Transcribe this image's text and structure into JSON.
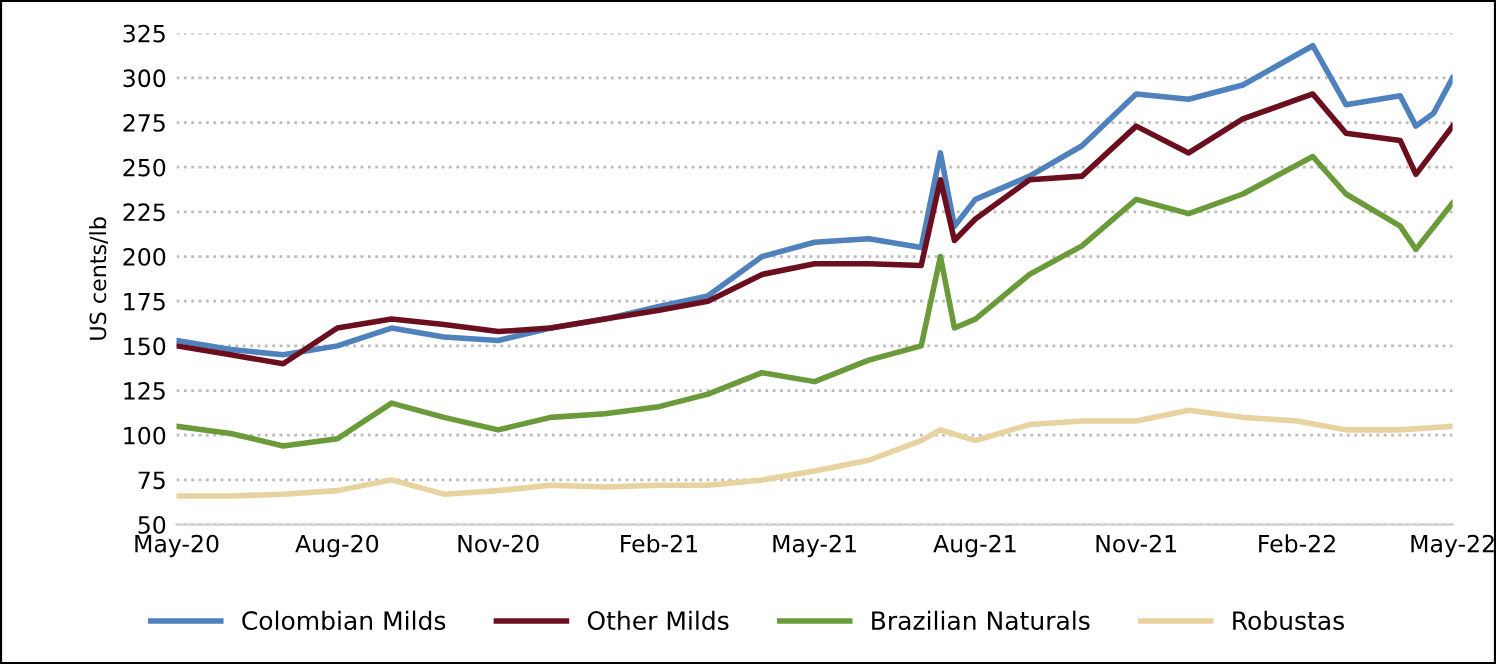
{
  "chart_data": {
    "type": "line",
    "ylabel": "US cents/lb",
    "ylim": [
      50,
      325
    ],
    "yticks": [
      50,
      75,
      100,
      125,
      150,
      175,
      200,
      225,
      250,
      275,
      300,
      325
    ],
    "xlim": [
      "2020-05-01",
      "2022-05-01"
    ],
    "xticks": [
      {
        "value": "2020-05-01",
        "label": "May-20"
      },
      {
        "value": "2020-08-01",
        "label": "Aug-20"
      },
      {
        "value": "2020-11-01",
        "label": "Nov-20"
      },
      {
        "value": "2021-02-01",
        "label": "Feb-21"
      },
      {
        "value": "2021-05-01",
        "label": "May-21"
      },
      {
        "value": "2021-08-01",
        "label": "Aug-21"
      },
      {
        "value": "2021-11-01",
        "label": "Nov-21"
      },
      {
        "value": "2022-02-01",
        "label": "Feb-22"
      },
      {
        "value": "2022-05-01",
        "label": "May-22"
      }
    ],
    "grid": "y",
    "legend": "bottom",
    "marker": "none",
    "line_style": "solid",
    "series": [
      {
        "name": "Colombian Milds",
        "color": "#4f81bd",
        "x": [
          "2020-05-01",
          "2020-06-01",
          "2020-07-01",
          "2020-08-01",
          "2020-09-01",
          "2020-10-01",
          "2020-11-01",
          "2020-12-01",
          "2021-01-01",
          "2021-02-01",
          "2021-03-01",
          "2021-04-01",
          "2021-05-01",
          "2021-06-01",
          "2021-07-01",
          "2021-07-12",
          "2021-07-20",
          "2021-08-01",
          "2021-09-01",
          "2021-10-01",
          "2021-11-01",
          "2021-12-01",
          "2022-01-01",
          "2022-02-10",
          "2022-03-01",
          "2022-04-01",
          "2022-04-10",
          "2022-04-20",
          "2022-05-01"
        ],
        "values": [
          153,
          148,
          145,
          150,
          160,
          155,
          153,
          160,
          165,
          172,
          178,
          200,
          208,
          210,
          205,
          258,
          217,
          232,
          245,
          262,
          291,
          288,
          296,
          318,
          285,
          290,
          273,
          280,
          300
        ]
      },
      {
        "name": "Other Milds",
        "color": "#6b0f1f",
        "x": [
          "2020-05-01",
          "2020-06-01",
          "2020-07-01",
          "2020-08-01",
          "2020-09-01",
          "2020-10-01",
          "2020-11-01",
          "2020-12-01",
          "2021-01-01",
          "2021-02-01",
          "2021-03-01",
          "2021-04-01",
          "2021-05-01",
          "2021-06-01",
          "2021-07-01",
          "2021-07-12",
          "2021-07-20",
          "2021-08-01",
          "2021-09-01",
          "2021-10-01",
          "2021-11-01",
          "2021-12-01",
          "2022-01-01",
          "2022-02-10",
          "2022-03-01",
          "2022-04-01",
          "2022-04-10",
          "2022-05-01"
        ],
        "values": [
          150,
          145,
          140,
          160,
          165,
          162,
          158,
          160,
          165,
          170,
          175,
          190,
          196,
          196,
          195,
          243,
          209,
          221,
          243,
          245,
          273,
          258,
          277,
          291,
          269,
          265,
          246,
          273
        ]
      },
      {
        "name": "Brazilian Naturals",
        "color": "#6a9a3a",
        "x": [
          "2020-05-01",
          "2020-06-01",
          "2020-07-01",
          "2020-08-01",
          "2020-09-01",
          "2020-10-01",
          "2020-11-01",
          "2020-12-01",
          "2021-01-01",
          "2021-02-01",
          "2021-03-01",
          "2021-04-01",
          "2021-05-01",
          "2021-06-01",
          "2021-07-01",
          "2021-07-12",
          "2021-07-20",
          "2021-08-01",
          "2021-09-01",
          "2021-10-01",
          "2021-11-01",
          "2021-12-01",
          "2022-01-01",
          "2022-02-10",
          "2022-03-01",
          "2022-04-01",
          "2022-04-10",
          "2022-05-01"
        ],
        "values": [
          105,
          101,
          94,
          98,
          118,
          110,
          103,
          110,
          112,
          116,
          123,
          135,
          130,
          142,
          150,
          200,
          160,
          165,
          190,
          206,
          232,
          224,
          235,
          256,
          235,
          217,
          204,
          230
        ]
      },
      {
        "name": "Robustas",
        "color": "#e8d3a0",
        "x": [
          "2020-05-01",
          "2020-06-01",
          "2020-07-01",
          "2020-08-01",
          "2020-09-01",
          "2020-10-01",
          "2020-11-01",
          "2020-12-01",
          "2021-01-01",
          "2021-02-01",
          "2021-03-01",
          "2021-04-01",
          "2021-05-01",
          "2021-06-01",
          "2021-07-01",
          "2021-07-12",
          "2021-08-01",
          "2021-09-01",
          "2021-10-01",
          "2021-11-01",
          "2021-12-01",
          "2022-01-01",
          "2022-02-01",
          "2022-03-01",
          "2022-04-01",
          "2022-05-01"
        ],
        "values": [
          66,
          66,
          67,
          69,
          75,
          67,
          69,
          72,
          71,
          72,
          72,
          75,
          80,
          86,
          97,
          103,
          97,
          106,
          108,
          108,
          114,
          110,
          108,
          103,
          103,
          105
        ]
      }
    ]
  }
}
